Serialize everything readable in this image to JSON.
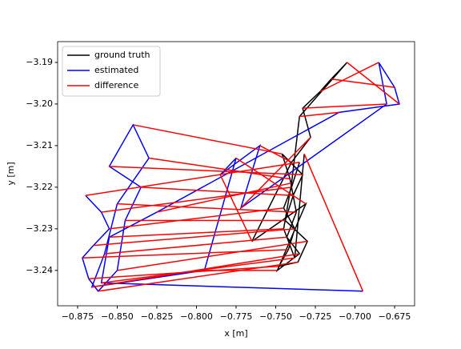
{
  "chart_data": {
    "type": "line",
    "xlabel": "x [m]",
    "ylabel": "y [m]",
    "xlim": [
      -0.8876,
      -0.6624
    ],
    "ylim": [
      -3.2485,
      -3.185
    ],
    "xticks": [
      {
        "value": -0.875,
        "label": "−0.875"
      },
      {
        "value": -0.85,
        "label": "−0.850"
      },
      {
        "value": -0.825,
        "label": "−0.825"
      },
      {
        "value": -0.8,
        "label": "−0.800"
      },
      {
        "value": -0.775,
        "label": "−0.775"
      },
      {
        "value": -0.75,
        "label": "−0.750"
      },
      {
        "value": -0.725,
        "label": "−0.725"
      },
      {
        "value": -0.7,
        "label": "−0.700"
      },
      {
        "value": -0.675,
        "label": "−0.675"
      }
    ],
    "yticks": [
      {
        "value": -3.24,
        "label": "−3.24"
      },
      {
        "value": -3.23,
        "label": "−3.23"
      },
      {
        "value": -3.22,
        "label": "−3.22"
      },
      {
        "value": -3.21,
        "label": "−3.21"
      },
      {
        "value": -3.2,
        "label": "−3.20"
      },
      {
        "value": -3.19,
        "label": "−3.19"
      }
    ],
    "legend": "upper left",
    "series": [
      {
        "name": "ground truth",
        "color": "#000000",
        "x": [
          -0.735,
          -0.74,
          -0.745,
          -0.738,
          -0.742,
          -0.748,
          -0.736,
          -0.73,
          -0.744,
          -0.739,
          -0.733,
          -0.746,
          -0.741,
          -0.737,
          -0.743,
          -0.735,
          -0.749,
          -0.731,
          -0.765,
          -0.74,
          -0.728,
          -0.733,
          -0.722,
          -0.715,
          -0.705,
          -0.735,
          -0.74,
          -0.745,
          -0.738,
          -0.732
        ],
        "y": [
          -3.214,
          -3.22,
          -3.225,
          -3.23,
          -3.235,
          -3.239,
          -3.238,
          -3.233,
          -3.228,
          -3.222,
          -3.217,
          -3.212,
          -3.218,
          -3.226,
          -3.232,
          -3.236,
          -3.24,
          -3.224,
          -3.233,
          -3.214,
          -3.208,
          -3.201,
          -3.197,
          -3.194,
          -3.19,
          -3.203,
          -3.219,
          -3.23,
          -3.237,
          -3.212
        ]
      },
      {
        "name": "estimated",
        "color": "#0000ff",
        "x": [
          -0.87,
          -0.86,
          -0.855,
          -0.865,
          -0.872,
          -0.868,
          -0.862,
          -0.85,
          -0.845,
          -0.835,
          -0.855,
          -0.84,
          -0.83,
          -0.85,
          -0.858,
          -0.866,
          -0.795,
          -0.775,
          -0.785,
          -0.76,
          -0.772,
          -0.68,
          -0.685,
          -0.675,
          -0.672,
          -0.71,
          -0.825,
          -0.855,
          -0.86,
          -0.695
        ],
        "y": [
          -3.222,
          -3.226,
          -3.23,
          -3.234,
          -3.237,
          -3.242,
          -3.245,
          -3.24,
          -3.228,
          -3.22,
          -3.215,
          -3.205,
          -3.213,
          -3.224,
          -3.236,
          -3.244,
          -3.24,
          -3.213,
          -3.217,
          -3.21,
          -3.225,
          -3.2,
          -3.19,
          -3.196,
          -3.2,
          -3.202,
          -3.226,
          -3.232,
          -3.243,
          -3.245
        ]
      },
      {
        "name": "difference",
        "color": "#ff0000"
      }
    ]
  }
}
